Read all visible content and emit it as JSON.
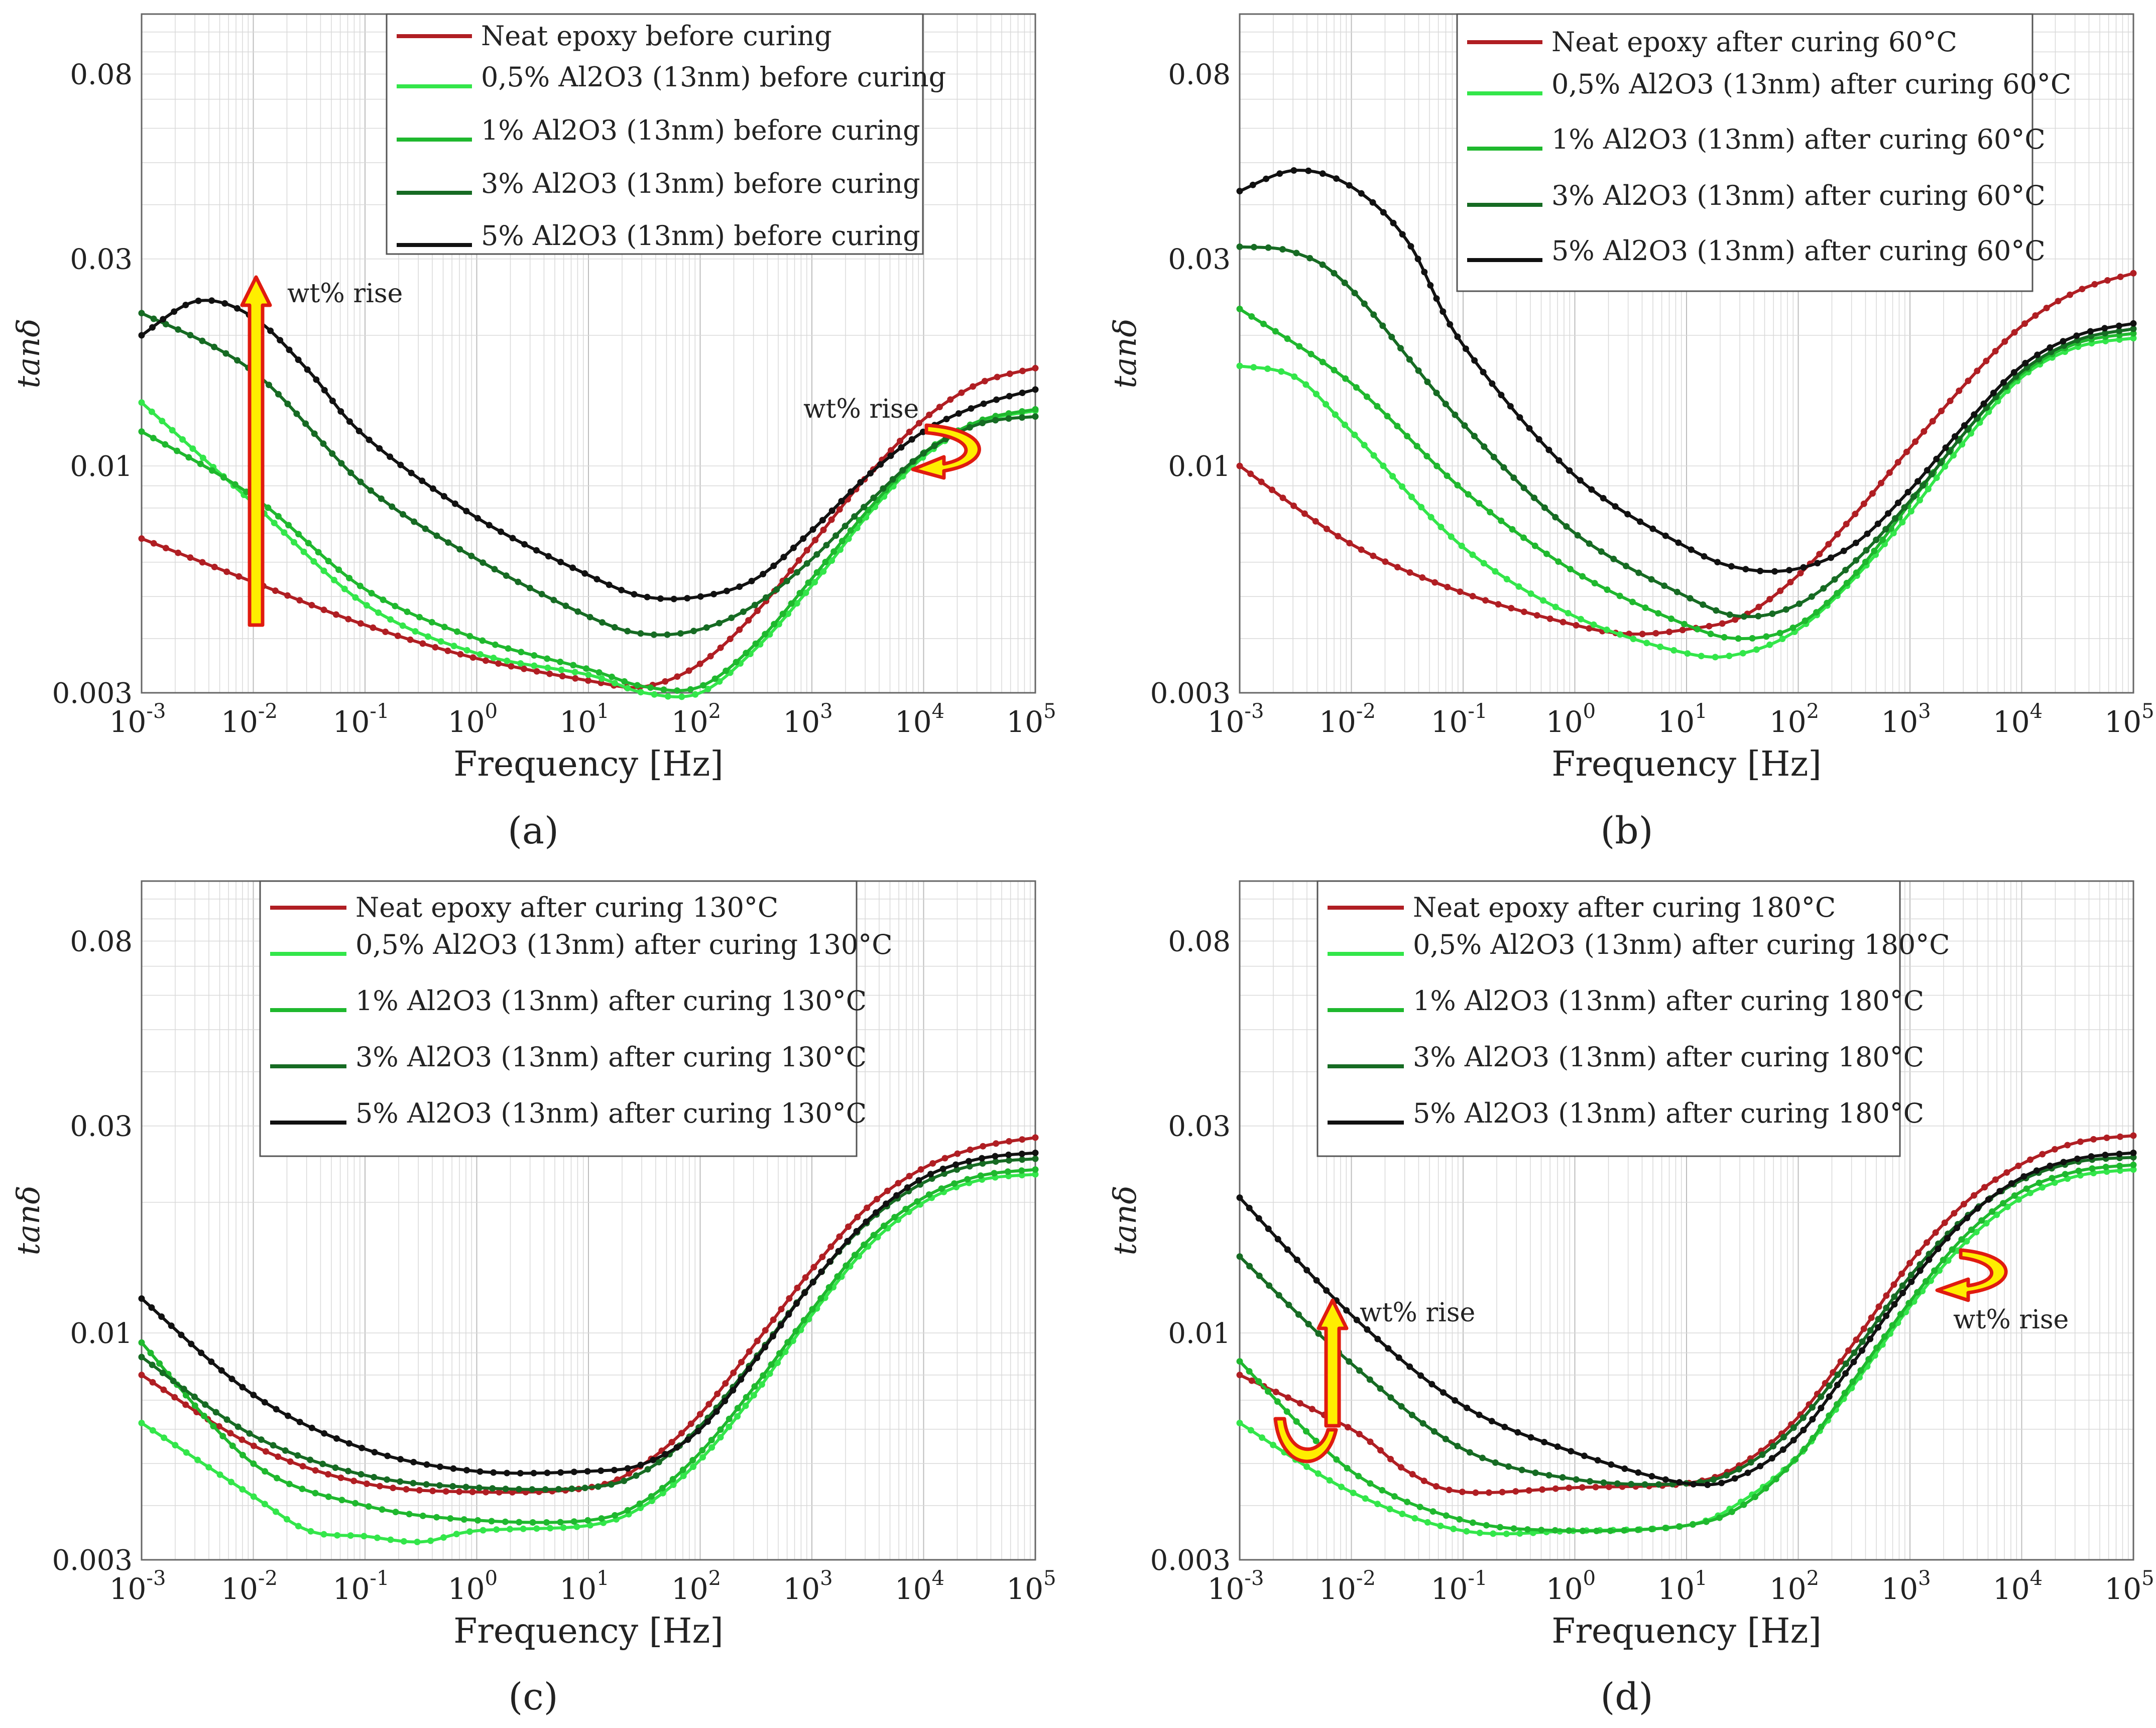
{
  "palette": {
    "neat": "#b01e23",
    "c05": "#33e64a",
    "c1": "#1fb82e",
    "c3": "#166b23",
    "c5": "#111111",
    "arrow_fill": "#ffee00",
    "arrow_stroke": "#e01b10"
  },
  "chart_data": [
    {
      "type": "line",
      "panel_label": "(a)",
      "xlabel": "Frequency [Hz]",
      "ylabel": "tanδ",
      "x_scale": "log",
      "y_scale": "log",
      "xlim": [
        0.001,
        100000
      ],
      "ylim": [
        0.003,
        0.11
      ],
      "x_ticks": [
        "10-3",
        "10-2",
        "10-1",
        "100",
        "101",
        "102",
        "103",
        "104",
        "105"
      ],
      "y_ticks": [
        0.003,
        0.01,
        0.03,
        0.08
      ],
      "y_tick_labels": [
        "0.003",
        "0.01",
        "0.03",
        "0.08"
      ],
      "legend": "top-center",
      "series": [
        {
          "name": "Neat epoxy before curing",
          "color_key": "neat",
          "x_log": [
            -3,
            -2,
            -1,
            0,
            1,
            1.5,
            2,
            2.5,
            3,
            3.5,
            4,
            4.5,
            5
          ],
          "y": [
            0.0068,
            0.0054,
            0.0043,
            0.0036,
            0.0032,
            0.0031,
            0.0035,
            0.0046,
            0.0066,
            0.0095,
            0.0128,
            0.0155,
            0.0168
          ]
        },
        {
          "name": "0,5% Al2O3 (13nm) before curing",
          "color_key": "c05",
          "x_log": [
            -3,
            -2,
            -1,
            0,
            1,
            1.5,
            2,
            2.5,
            3,
            3.5,
            4,
            4.5,
            5
          ],
          "y": [
            0.014,
            0.0082,
            0.0048,
            0.0037,
            0.0033,
            0.003,
            0.003,
            0.0038,
            0.0053,
            0.0077,
            0.0105,
            0.0126,
            0.0134
          ]
        },
        {
          "name": "1% Al2O3 (13nm) before curing",
          "color_key": "c1",
          "x_log": [
            -3,
            -2,
            -1,
            0,
            1,
            1.5,
            2,
            2.5,
            3,
            3.5,
            4,
            4.5,
            5
          ],
          "y": [
            0.012,
            0.0085,
            0.0052,
            0.004,
            0.0034,
            0.0031,
            0.0031,
            0.0039,
            0.0055,
            0.0079,
            0.0107,
            0.0127,
            0.0135
          ]
        },
        {
          "name": "3% Al2O3 (13nm) before curing",
          "color_key": "c3",
          "x_log": [
            -3,
            -2,
            -1,
            0,
            1,
            1.5,
            2,
            2.5,
            3,
            3.5,
            4,
            4.5,
            5
          ],
          "y": [
            0.0225,
            0.0165,
            0.009,
            0.0061,
            0.0045,
            0.0041,
            0.0042,
            0.0048,
            0.0061,
            0.0082,
            0.0107,
            0.0125,
            0.013
          ]
        },
        {
          "name": "5% Al2O3 (13nm) before curing",
          "color_key": "c5",
          "x_log": [
            -3,
            -2.5,
            -2,
            -1.5,
            -1,
            0,
            1,
            1.5,
            2,
            2.5,
            3,
            3.5,
            4,
            4.5,
            5
          ],
          "y": [
            0.02,
            0.024,
            0.022,
            0.0165,
            0.0117,
            0.0076,
            0.0056,
            0.005,
            0.005,
            0.0055,
            0.0071,
            0.0095,
            0.012,
            0.0138,
            0.015
          ]
        }
      ],
      "annotations": [
        "wt% rise",
        "wt% rise"
      ]
    },
    {
      "type": "line",
      "panel_label": "(b)",
      "xlabel": "Frequency [Hz]",
      "ylabel": "tanδ",
      "x_scale": "log",
      "y_scale": "log",
      "xlim": [
        0.001,
        100000
      ],
      "ylim": [
        0.003,
        0.11
      ],
      "x_ticks": [
        "10-3",
        "10-2",
        "10-1",
        "100",
        "101",
        "102",
        "103",
        "104",
        "105"
      ],
      "y_ticks": [
        0.003,
        0.01,
        0.03,
        0.08
      ],
      "y_tick_labels": [
        "0.003",
        "0.01",
        "0.03",
        "0.08"
      ],
      "legend": "top-right",
      "series": [
        {
          "name": "Neat epoxy after curing 60°C",
          "color_key": "neat",
          "x_log": [
            -3,
            -2,
            -1,
            0,
            0.5,
            1,
            1.5,
            2,
            2.5,
            3,
            3.5,
            4,
            4.5,
            5
          ],
          "y": [
            0.01,
            0.0066,
            0.0051,
            0.0043,
            0.0041,
            0.0042,
            0.0045,
            0.0056,
            0.0077,
            0.011,
            0.0155,
            0.021,
            0.0253,
            0.0278
          ]
        },
        {
          "name": "0,5% Al2O3 (13nm) after curing 60°C",
          "color_key": "c05",
          "x_log": [
            -3,
            -2.5,
            -2,
            -1,
            0,
            1,
            1.5,
            2,
            2.5,
            3,
            3.5,
            4,
            4.5,
            5
          ],
          "y": [
            0.017,
            0.016,
            0.012,
            0.0065,
            0.0045,
            0.0037,
            0.0037,
            0.0042,
            0.0055,
            0.0078,
            0.0115,
            0.016,
            0.0188,
            0.0197
          ]
        },
        {
          "name": "1% Al2O3 (13nm) after curing 60°C",
          "color_key": "c1",
          "x_log": [
            -3,
            -2,
            -1,
            0,
            1,
            1.5,
            2,
            2.5,
            3,
            3.5,
            4,
            4.5,
            5
          ],
          "y": [
            0.023,
            0.0155,
            0.0088,
            0.0057,
            0.0043,
            0.004,
            0.0043,
            0.0056,
            0.0082,
            0.012,
            0.0163,
            0.0192,
            0.0202
          ]
        },
        {
          "name": "3% Al2O3 (13nm) after curing 60°C",
          "color_key": "c3",
          "x_log": [
            -3,
            -2.5,
            -2,
            -1,
            0,
            1,
            1.5,
            2,
            2.5,
            3,
            3.5,
            4,
            4.5,
            5
          ],
          "y": [
            0.032,
            0.031,
            0.0255,
            0.0125,
            0.007,
            0.005,
            0.0045,
            0.0048,
            0.006,
            0.0083,
            0.012,
            0.0165,
            0.0195,
            0.0207
          ]
        },
        {
          "name": "5% Al2O3 (13nm) after curing 60°C",
          "color_key": "c5",
          "x_log": [
            -3,
            -2.5,
            -2,
            -1.5,
            -1,
            0,
            1,
            1.5,
            2,
            2.5,
            3,
            3.5,
            4,
            4.5,
            5
          ],
          "y": [
            0.043,
            0.048,
            0.044,
            0.033,
            0.019,
            0.0095,
            0.0065,
            0.0058,
            0.0058,
            0.0066,
            0.0088,
            0.0125,
            0.017,
            0.02,
            0.0213
          ]
        }
      ]
    },
    {
      "type": "line",
      "panel_label": "(c)",
      "xlabel": "Frequency [Hz]",
      "ylabel": "tanδ",
      "x_scale": "log",
      "y_scale": "log",
      "xlim": [
        0.001,
        100000
      ],
      "ylim": [
        0.003,
        0.11
      ],
      "x_ticks": [
        "10-3",
        "10-2",
        "10-1",
        "100",
        "101",
        "102",
        "103",
        "104",
        "105"
      ],
      "y_ticks": [
        0.003,
        0.01,
        0.03,
        0.08
      ],
      "y_tick_labels": [
        "0.003",
        "0.01",
        "0.03",
        "0.08"
      ],
      "legend": "top-center",
      "series": [
        {
          "name": "Neat epoxy after curing 130°C",
          "color_key": "neat",
          "x_log": [
            -3,
            -2,
            -1,
            0,
            1,
            1.5,
            2,
            2.5,
            3,
            3.5,
            4,
            4.5,
            5
          ],
          "y": [
            0.008,
            0.0055,
            0.0045,
            0.0043,
            0.0044,
            0.005,
            0.0065,
            0.0095,
            0.014,
            0.0195,
            0.024,
            0.0268,
            0.0282
          ]
        },
        {
          "name": "0,5% Al2O3 (13nm) after curing 130°C",
          "color_key": "c05",
          "x_log": [
            -3,
            -2,
            -1.5,
            -1,
            -0.5,
            0,
            1,
            1.5,
            2,
            2.5,
            3,
            3.5,
            4,
            4.5,
            5
          ],
          "y": [
            0.0062,
            0.0042,
            0.0035,
            0.0034,
            0.0033,
            0.0035,
            0.0036,
            0.004,
            0.0051,
            0.0073,
            0.011,
            0.0158,
            0.02,
            0.0225,
            0.0232
          ]
        },
        {
          "name": "1% Al2O3 (13nm) after curing 130°C",
          "color_key": "c1",
          "x_log": [
            -3,
            -2,
            -1,
            0,
            1,
            1.5,
            2,
            2.5,
            3,
            3.5,
            4,
            4.5,
            5
          ],
          "y": [
            0.0095,
            0.005,
            0.004,
            0.0037,
            0.0037,
            0.0041,
            0.0053,
            0.0076,
            0.0113,
            0.0163,
            0.0205,
            0.023,
            0.0238
          ]
        },
        {
          "name": "3% Al2O3 (13nm) after curing 130°C",
          "color_key": "c3",
          "x_log": [
            -3,
            -2,
            -1,
            0,
            1,
            1.5,
            2,
            2.5,
            3,
            3.5,
            4,
            4.5,
            5
          ],
          "y": [
            0.0088,
            0.0058,
            0.0047,
            0.0044,
            0.0044,
            0.0048,
            0.0061,
            0.0088,
            0.013,
            0.018,
            0.0222,
            0.0245,
            0.0252
          ]
        },
        {
          "name": "5% Al2O3 (13nm) after curing 130°C",
          "color_key": "c5",
          "x_log": [
            -3,
            -2,
            -1,
            0,
            1,
            1.5,
            2,
            2.5,
            3,
            3.5,
            4,
            4.5,
            5
          ],
          "y": [
            0.012,
            0.0072,
            0.0054,
            0.0048,
            0.0048,
            0.005,
            0.006,
            0.0087,
            0.013,
            0.0182,
            0.0228,
            0.0252,
            0.026
          ]
        }
      ]
    },
    {
      "type": "line",
      "panel_label": "(d)",
      "xlabel": "Frequency [Hz]",
      "ylabel": "tanδ",
      "x_scale": "log",
      "y_scale": "log",
      "xlim": [
        0.001,
        100000
      ],
      "ylim": [
        0.003,
        0.11
      ],
      "x_ticks": [
        "10-3",
        "10-2",
        "10-1",
        "100",
        "101",
        "102",
        "103",
        "104",
        "105"
      ],
      "y_ticks": [
        0.003,
        0.01,
        0.03,
        0.08
      ],
      "y_tick_labels": [
        "0.003",
        "0.01",
        "0.03",
        "0.08"
      ],
      "legend": "top-center",
      "series": [
        {
          "name": "Neat epoxy after curing 180°C",
          "color_key": "neat",
          "x_log": [
            -3,
            -2,
            -1.5,
            -1,
            0,
            1,
            1.5,
            2,
            2.5,
            3,
            3.5,
            4,
            4.5,
            5
          ],
          "y": [
            0.008,
            0.006,
            0.0048,
            0.0043,
            0.0044,
            0.0045,
            0.005,
            0.0064,
            0.0095,
            0.0145,
            0.02,
            0.0245,
            0.0275,
            0.0285
          ]
        },
        {
          "name": "0,5% Al2O3 (13nm) after curing 180°C",
          "color_key": "c05",
          "x_log": [
            -3,
            -2,
            -1,
            0,
            1,
            1.5,
            2,
            2.5,
            3,
            3.5,
            4,
            4.5,
            5
          ],
          "y": [
            0.0062,
            0.0043,
            0.0035,
            0.0035,
            0.0036,
            0.0041,
            0.0052,
            0.0076,
            0.0115,
            0.0162,
            0.0205,
            0.023,
            0.0238
          ]
        },
        {
          "name": "1% Al2O3 (13nm) after curing 180°C",
          "color_key": "c1",
          "x_log": [
            -3,
            -2,
            -1,
            0,
            1,
            1.5,
            2,
            2.5,
            3,
            3.5,
            4,
            4.5,
            5
          ],
          "y": [
            0.0086,
            0.0048,
            0.0037,
            0.0035,
            0.0036,
            0.004,
            0.0052,
            0.0078,
            0.0118,
            0.0168,
            0.0212,
            0.0236,
            0.0244
          ]
        },
        {
          "name": "3% Al2O3 (13nm) after curing 180°C",
          "color_key": "c3",
          "x_log": [
            -3,
            -2,
            -1,
            0,
            1,
            1.5,
            2,
            2.5,
            3,
            3.5,
            4,
            4.5,
            5
          ],
          "y": [
            0.015,
            0.0085,
            0.0054,
            0.0046,
            0.0045,
            0.0049,
            0.0062,
            0.009,
            0.0135,
            0.0185,
            0.0225,
            0.0248,
            0.0254
          ]
        },
        {
          "name": "5% Al2O3 (13nm) after curing 180°C",
          "color_key": "c5",
          "x_log": [
            -3,
            -2,
            -1,
            0,
            1,
            1.5,
            2,
            2.5,
            3,
            3.5,
            4,
            4.5,
            5
          ],
          "y": [
            0.0205,
            0.011,
            0.0068,
            0.0053,
            0.0045,
            0.0047,
            0.0058,
            0.0086,
            0.013,
            0.0183,
            0.0228,
            0.0252,
            0.026
          ]
        }
      ],
      "annotations": [
        "wt% rise",
        "wt% rise"
      ]
    }
  ]
}
